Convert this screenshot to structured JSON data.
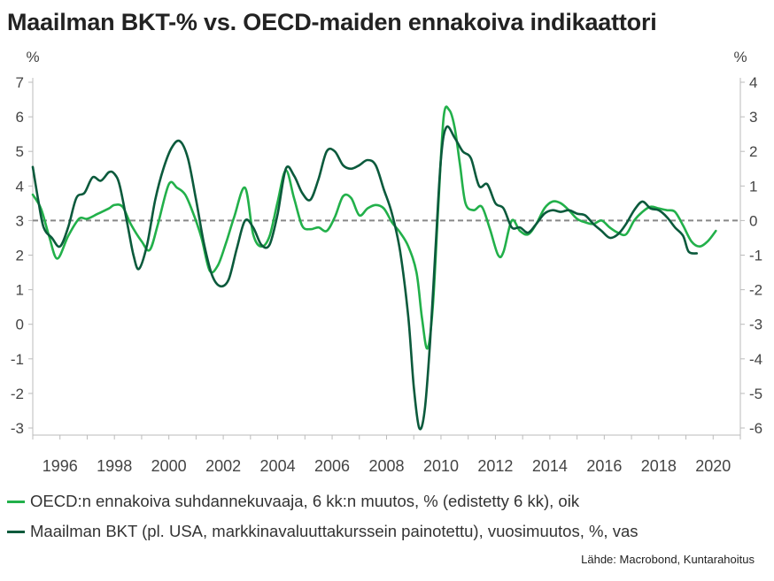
{
  "title": "Maailman BKT-% vs. OECD-maiden ennakoiva indikaattori",
  "source": "Lähde: Macrobond, Kuntarahoitus",
  "colors": {
    "oecd": "#22b04a",
    "gdp": "#0b5a3c",
    "zero_line": "#888888",
    "axis": "#bbbbbb"
  },
  "chart_data": {
    "type": "line",
    "title": "Maailman BKT-% vs. OECD-maiden ennakoiva indikaattori",
    "xlabel": "",
    "left_axis": {
      "unit": "%",
      "ylim": [
        -3,
        7
      ],
      "ticks": [
        -3,
        -2,
        -1,
        0,
        1,
        2,
        3,
        4,
        5,
        6,
        7
      ]
    },
    "right_axis": {
      "unit": "%",
      "ylim": [
        -6,
        4
      ],
      "ticks": [
        -6,
        -5,
        -4,
        -3,
        -2,
        -1,
        0,
        1,
        2,
        3,
        4
      ]
    },
    "x_ticks": [
      1996,
      1998,
      2000,
      2002,
      2004,
      2006,
      2008,
      2010,
      2012,
      2014,
      2016,
      2018,
      2020
    ],
    "xlim": [
      1995,
      2021
    ],
    "reference_line": {
      "axis": "left",
      "value": 3,
      "style": "dashed"
    },
    "grid": true,
    "legend": "bottom",
    "series": [
      {
        "name": "OECD:n ennakoiva suhdannekuvaaja, 6 kk:n muutos, % (edistetty 6 kk), oik",
        "axis": "right",
        "color": "#22b04a",
        "x": [
          1995.0,
          1995.3,
          1995.6,
          1995.9,
          1996.3,
          1996.7,
          1997.0,
          1997.4,
          1997.8,
          1998.0,
          1998.3,
          1998.6,
          1999.0,
          1999.3,
          1999.6,
          2000.0,
          2000.3,
          2000.6,
          2000.9,
          2001.2,
          2001.5,
          2001.8,
          2002.1,
          2002.4,
          2002.8,
          2003.1,
          2003.4,
          2003.7,
          2004.0,
          2004.3,
          2004.6,
          2004.9,
          2005.2,
          2005.5,
          2005.8,
          2006.1,
          2006.4,
          2006.7,
          2007.0,
          2007.3,
          2007.6,
          2007.9,
          2008.2,
          2008.5,
          2008.8,
          2009.1,
          2009.3,
          2009.5,
          2009.7,
          2009.9,
          2010.1,
          2010.3,
          2010.5,
          2010.7,
          2010.9,
          2011.2,
          2011.5,
          2011.8,
          2012.1,
          2012.3,
          2012.6,
          2012.9,
          2013.2,
          2013.5,
          2013.8,
          2014.1,
          2014.4,
          2014.7,
          2015.0,
          2015.3,
          2015.6,
          2015.9,
          2016.2,
          2016.5,
          2016.8,
          2017.1,
          2017.4,
          2017.7,
          2018.0,
          2018.3,
          2018.6,
          2018.9,
          2019.2,
          2019.5,
          2019.8,
          2020.1
        ],
        "y": [
          0.75,
          0.35,
          -0.45,
          -1.1,
          -0.45,
          0.05,
          0.05,
          0.2,
          0.35,
          0.45,
          0.4,
          -0.1,
          -0.6,
          -0.85,
          -0.1,
          1.05,
          0.95,
          0.75,
          0.2,
          -0.5,
          -1.45,
          -1.3,
          -0.65,
          0.1,
          0.95,
          -0.4,
          -0.75,
          -0.45,
          0.55,
          1.45,
          0.65,
          -0.15,
          -0.25,
          -0.2,
          -0.3,
          0.1,
          0.7,
          0.65,
          0.15,
          0.35,
          0.45,
          0.35,
          -0.05,
          -0.35,
          -0.75,
          -1.5,
          -2.8,
          -3.7,
          -2.5,
          0.4,
          3.0,
          3.2,
          2.7,
          1.6,
          0.5,
          0.3,
          0.4,
          -0.25,
          -1.0,
          -0.9,
          0.0,
          -0.3,
          -0.4,
          -0.1,
          0.35,
          0.55,
          0.5,
          0.3,
          0.05,
          -0.05,
          -0.1,
          0.0,
          -0.2,
          -0.35,
          -0.4,
          0.0,
          0.25,
          0.4,
          0.35,
          0.3,
          0.25,
          -0.15,
          -0.6,
          -0.75,
          -0.6,
          -0.3
        ]
      },
      {
        "name": "Maailman BKT (pl. USA, markkinavaluuttakurssein painotettu), vuosimuutos, %, vas",
        "axis": "left",
        "color": "#0b5a3c",
        "x": [
          1995.0,
          1995.2,
          1995.4,
          1995.7,
          1996.0,
          1996.3,
          1996.6,
          1996.9,
          1997.2,
          1997.5,
          1997.8,
          1998.0,
          1998.2,
          1998.5,
          1998.7,
          1998.9,
          1999.2,
          1999.5,
          1999.8,
          2000.1,
          2000.4,
          2000.7,
          2001.0,
          2001.3,
          2001.6,
          2001.9,
          2002.2,
          2002.5,
          2002.8,
          2003.1,
          2003.4,
          2003.7,
          2004.0,
          2004.3,
          2004.6,
          2004.9,
          2005.2,
          2005.5,
          2005.8,
          2006.1,
          2006.4,
          2006.7,
          2007.0,
          2007.3,
          2007.6,
          2007.9,
          2008.2,
          2008.5,
          2008.8,
          2009.0,
          2009.2,
          2009.4,
          2009.6,
          2009.8,
          2010.0,
          2010.2,
          2010.5,
          2010.8,
          2011.1,
          2011.4,
          2011.7,
          2012.0,
          2012.3,
          2012.6,
          2012.9,
          2013.2,
          2013.5,
          2013.8,
          2014.1,
          2014.4,
          2014.7,
          2015.0,
          2015.3,
          2015.6,
          2015.9,
          2016.2,
          2016.5,
          2016.8,
          2017.1,
          2017.4,
          2017.7,
          2018.0,
          2018.3,
          2018.6,
          2018.9,
          2019.1,
          2019.4
        ],
        "y": [
          4.55,
          3.6,
          2.8,
          2.5,
          2.25,
          2.8,
          3.65,
          3.8,
          4.25,
          4.15,
          4.4,
          4.35,
          4.0,
          2.8,
          2.0,
          1.6,
          2.3,
          3.6,
          4.5,
          5.1,
          5.3,
          4.8,
          3.6,
          2.3,
          1.4,
          1.1,
          1.3,
          2.2,
          3.0,
          2.8,
          2.3,
          2.3,
          3.2,
          4.5,
          4.3,
          3.8,
          3.6,
          4.2,
          5.0,
          5.0,
          4.6,
          4.5,
          4.6,
          4.75,
          4.6,
          3.9,
          3.2,
          2.1,
          0.2,
          -1.8,
          -3.0,
          -2.5,
          -0.5,
          2.2,
          4.8,
          5.7,
          5.4,
          5.0,
          4.8,
          4.0,
          4.05,
          3.5,
          3.35,
          2.8,
          2.8,
          2.65,
          2.9,
          3.2,
          3.3,
          3.25,
          3.3,
          3.2,
          3.15,
          2.9,
          2.7,
          2.5,
          2.6,
          2.9,
          3.3,
          3.55,
          3.35,
          3.3,
          3.1,
          2.8,
          2.55,
          2.1,
          2.05
        ]
      }
    ]
  }
}
